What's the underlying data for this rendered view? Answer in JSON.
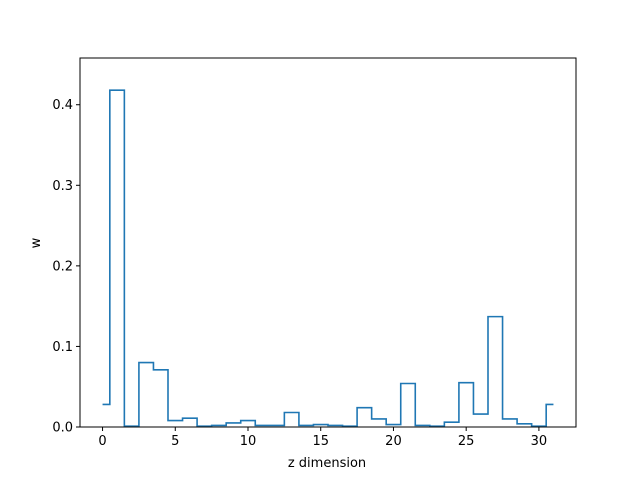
{
  "chart_data": {
    "type": "line",
    "step": "mid",
    "title": "",
    "xlabel": "z dimension",
    "ylabel": "w",
    "xlim": [
      -1.55,
      32.55
    ],
    "ylim": [
      0,
      0.458
    ],
    "xticks": [
      0,
      5,
      10,
      15,
      20,
      25,
      30
    ],
    "yticks": [
      0.0,
      0.1,
      0.2,
      0.3,
      0.4
    ],
    "ytick_labels": [
      "0.0",
      "0.1",
      "0.2",
      "0.3",
      "0.4"
    ],
    "grid": false,
    "line_color": "#1f77b4",
    "series": [
      {
        "x": [
          0,
          1,
          2,
          3,
          4,
          5,
          6,
          7,
          8,
          9,
          10,
          11,
          12,
          13,
          14,
          15,
          16,
          17,
          18,
          19,
          20,
          21,
          22,
          23,
          24,
          25,
          26,
          27,
          28,
          29,
          30,
          31
        ],
        "y": [
          0.028,
          0.418,
          0.001,
          0.08,
          0.071,
          0.008,
          0.011,
          0.001,
          0.002,
          0.005,
          0.008,
          0.002,
          0.002,
          0.018,
          0.002,
          0.003,
          0.002,
          0.001,
          0.024,
          0.01,
          0.003,
          0.054,
          0.002,
          0.001,
          0.006,
          0.055,
          0.016,
          0.137,
          0.01,
          0.004,
          0.001,
          0.028
        ]
      }
    ]
  }
}
